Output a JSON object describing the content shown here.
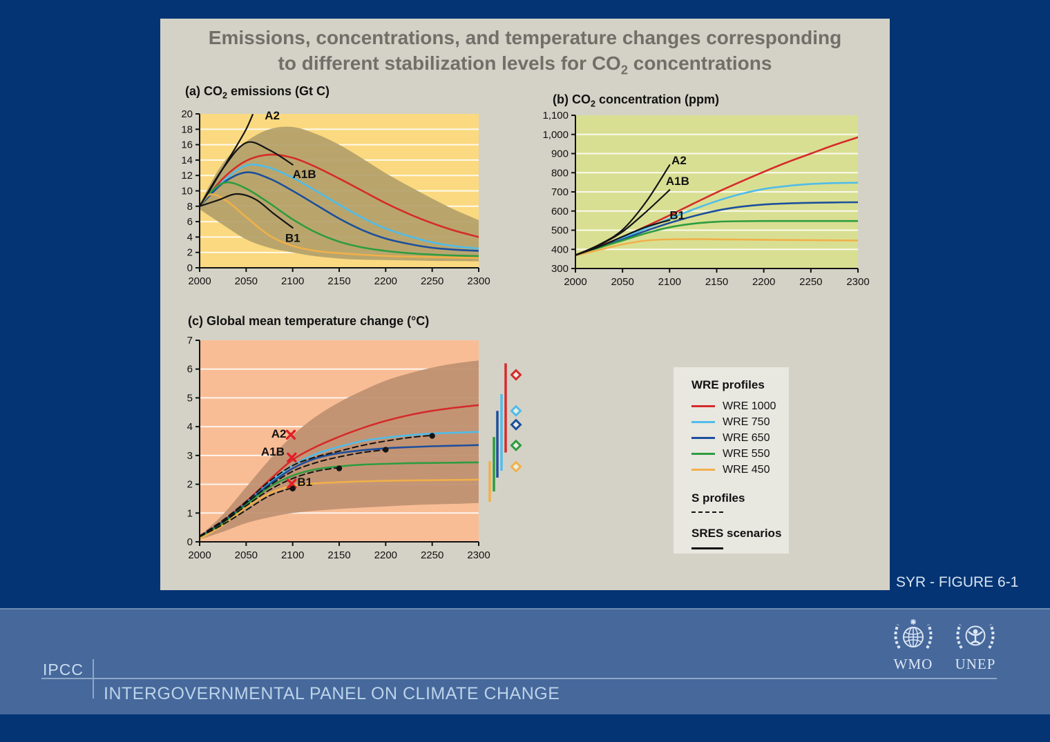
{
  "slide": {
    "title_line1": "Emissions, concentrations, and temperature changes corresponding",
    "title_line2_prefix": "to different stabilization levels for CO",
    "title_line2_sub": "2",
    "title_line2_suffix": " concentrations",
    "figure_label": "SYR - FIGURE 6-1"
  },
  "legend": {
    "title": "WRE profiles",
    "entries": [
      {
        "label": "WRE 1000",
        "color": "#D52B2B"
      },
      {
        "label": "WRE 750",
        "color": "#4FBCEA"
      },
      {
        "label": "WRE 650",
        "color": "#1C4F9C"
      },
      {
        "label": "WRE 550",
        "color": "#2E9C3F"
      },
      {
        "label": "WRE 450",
        "color": "#F0B04A"
      }
    ],
    "s_profiles_label": "S profiles",
    "sres_label": "SRES scenarios"
  },
  "footer": {
    "acronym": "IPCC",
    "full_name": "INTERGOVERNMENTAL PANEL ON CLIMATE CHANGE",
    "logo_left": "WMO",
    "logo_right": "UNEP"
  },
  "chart_data": [
    {
      "id": "a",
      "type": "line",
      "title_prefix": "(a) CO",
      "title_sub": "2",
      "title_suffix": " emissions (Gt C)",
      "xlim": [
        2000,
        2300
      ],
      "ylim": [
        0,
        20
      ],
      "xticks": [
        2000,
        2050,
        2100,
        2150,
        2200,
        2250,
        2300
      ],
      "yticks": [
        0,
        2,
        4,
        6,
        8,
        10,
        12,
        14,
        16,
        18,
        20
      ],
      "bg": "#FBD980",
      "band_color": "#B4A06A",
      "grid_color": "#FFFFFF",
      "x_default": [
        2000,
        2025,
        2050,
        2075,
        2100,
        2125,
        2150,
        2175,
        2200,
        2225,
        2250,
        2275,
        2300
      ],
      "band": {
        "upper": [
          8.3,
          13.6,
          16.4,
          18.0,
          18.3,
          17.4,
          16.0,
          14.2,
          12.3,
          10.6,
          9.0,
          7.5,
          6.2
        ],
        "lower": [
          7.6,
          5.6,
          3.7,
          2.6,
          2.0,
          1.5,
          1.2,
          1.05,
          1.0,
          0.95,
          0.9,
          0.88,
          0.85
        ]
      },
      "series": [
        {
          "name": "WRE 1000",
          "color": "#D52B2B",
          "y": [
            8,
            11.6,
            13.9,
            14.7,
            14.3,
            13.1,
            11.6,
            10.0,
            8.4,
            7.0,
            5.8,
            4.8,
            4.0
          ]
        },
        {
          "name": "WRE 750",
          "color": "#4FBCEA",
          "y": [
            8,
            11.2,
            13.3,
            13.0,
            11.7,
            10.0,
            8.2,
            6.5,
            5.1,
            4.1,
            3.3,
            2.8,
            2.5
          ]
        },
        {
          "name": "WRE 650",
          "color": "#1C4F9C",
          "y": [
            8,
            11.0,
            12.4,
            11.6,
            10.0,
            8.2,
            6.4,
            4.9,
            3.8,
            3.1,
            2.6,
            2.35,
            2.2
          ]
        },
        {
          "name": "WRE 550",
          "color": "#2E9C3F",
          "x": [
            2000,
            2015,
            2030,
            2050,
            2075,
            2100,
            2125,
            2150,
            2175,
            2200,
            2225,
            2250,
            2275,
            2300
          ],
          "y": [
            8,
            10.2,
            11.1,
            10.3,
            8.4,
            6.3,
            4.6,
            3.4,
            2.65,
            2.2,
            1.9,
            1.72,
            1.6,
            1.52
          ]
        },
        {
          "name": "WRE 450",
          "color": "#F0B04A",
          "x": [
            2000,
            2012,
            2030,
            2050,
            2075,
            2100,
            2125,
            2150,
            2175,
            2200,
            2225,
            2250,
            2275,
            2300
          ],
          "y": [
            8,
            9.55,
            8.6,
            6.6,
            4.2,
            2.85,
            2.2,
            1.9,
            1.7,
            1.55,
            1.45,
            1.4,
            1.33,
            1.27
          ]
        },
        {
          "name": "A2",
          "color": "#141414",
          "width": 2.2,
          "x": [
            2000,
            2010,
            2020,
            2030,
            2040,
            2050,
            2057
          ],
          "y": [
            8,
            9.9,
            11.9,
            13.9,
            15.9,
            18.0,
            19.9
          ]
        },
        {
          "name": "A1B",
          "color": "#141414",
          "width": 2.2,
          "x": [
            2000,
            2025,
            2050,
            2075,
            2100
          ],
          "y": [
            8,
            12.9,
            16.25,
            15.3,
            13.4
          ]
        },
        {
          "name": "B1",
          "color": "#141414",
          "width": 2.2,
          "x": [
            2000,
            2020,
            2040,
            2060,
            2080,
            2100
          ],
          "y": [
            8,
            8.8,
            9.6,
            8.9,
            7.0,
            5.2
          ]
        }
      ],
      "labels": [
        {
          "text": "A2",
          "x": 2070,
          "y": 19.8
        },
        {
          "text": "A1B",
          "x": 2100,
          "y": 12.2
        },
        {
          "text": "B1",
          "x": 2092,
          "y": 3.9
        }
      ],
      "markers": []
    },
    {
      "id": "b",
      "type": "line",
      "title_prefix": "(b) CO",
      "title_sub": "2",
      "title_suffix": " concentration (ppm)",
      "xlim": [
        2000,
        2300
      ],
      "ylim": [
        300,
        1100
      ],
      "xticks": [
        2000,
        2050,
        2100,
        2150,
        2200,
        2250,
        2300
      ],
      "yticks": [
        300,
        400,
        500,
        600,
        700,
        800,
        900,
        1000,
        1100
      ],
      "ytick_labels": [
        "300",
        "400",
        "500",
        "600",
        "700",
        "800",
        "900",
        "1,000",
        "1,100"
      ],
      "bg": "#D9DF92",
      "grid_color": "#FFFFFF",
      "x_default": [
        2000,
        2025,
        2050,
        2075,
        2100,
        2125,
        2150,
        2175,
        2200,
        2225,
        2250,
        2275,
        2300
      ],
      "series": [
        {
          "name": "WRE 1000",
          "color": "#D52B2B",
          "y": [
            370,
            415,
            465,
            520,
            578,
            638,
            697,
            752,
            805,
            855,
            900,
            945,
            985
          ]
        },
        {
          "name": "WRE 750",
          "color": "#4FBCEA",
          "y": [
            370,
            412,
            458,
            510,
            560,
            608,
            652,
            688,
            715,
            731,
            741,
            746,
            748
          ]
        },
        {
          "name": "WRE 650",
          "color": "#1C4F9C",
          "y": [
            370,
            410,
            452,
            497,
            538,
            573,
            602,
            622,
            634,
            640,
            643,
            645,
            646
          ]
        },
        {
          "name": "WRE 550",
          "color": "#2E9C3F",
          "y": [
            368,
            408,
            446,
            484,
            515,
            534,
            544,
            547,
            548,
            548,
            548,
            548,
            548
          ]
        },
        {
          "name": "WRE 450",
          "color": "#F0B04A",
          "y": [
            368,
            397,
            426,
            446,
            452,
            453,
            452,
            451,
            450,
            449,
            448,
            447,
            446
          ]
        },
        {
          "name": "A2",
          "color": "#141414",
          "width": 2.2,
          "x": [
            2000,
            2025,
            2050,
            2075,
            2100
          ],
          "y": [
            370,
            424,
            502,
            648,
            840
          ]
        },
        {
          "name": "A1B",
          "color": "#141414",
          "width": 2.2,
          "x": [
            2000,
            2025,
            2050,
            2075,
            2100
          ],
          "y": [
            370,
            421,
            492,
            596,
            710
          ]
        },
        {
          "name": "B1",
          "color": "#141414",
          "width": 2.2,
          "x": [
            2000,
            2025,
            2050,
            2075,
            2100
          ],
          "y": [
            369,
            413,
            466,
            517,
            553
          ]
        }
      ],
      "labels": [
        {
          "text": "A2",
          "x": 2102,
          "y": 865
        },
        {
          "text": "A1B",
          "x": 2096,
          "y": 757
        },
        {
          "text": "B1",
          "x": 2100,
          "y": 580
        }
      ],
      "markers": []
    },
    {
      "id": "c",
      "type": "line",
      "title_prefix": "(c) Global mean temperature change (°C)",
      "title_sub": "",
      "title_suffix": "",
      "xlim": [
        2000,
        2300
      ],
      "ylim": [
        0,
        7
      ],
      "xticks": [
        2000,
        2050,
        2100,
        2150,
        2200,
        2250,
        2300
      ],
      "yticks": [
        0,
        1,
        2,
        3,
        4,
        5,
        6,
        7
      ],
      "bg": "#F9BD95",
      "band_color": "#BE9071",
      "grid_color": "#FFFFFF",
      "x_default": [
        2000,
        2025,
        2050,
        2075,
        2100,
        2125,
        2150,
        2175,
        2200,
        2225,
        2250,
        2275,
        2300
      ],
      "band": {
        "upper": [
          0.2,
          0.95,
          1.9,
          2.85,
          3.7,
          4.35,
          4.85,
          5.25,
          5.6,
          5.85,
          6.05,
          6.2,
          6.3
        ],
        "lower": [
          0.08,
          0.35,
          0.65,
          0.85,
          1.0,
          1.08,
          1.14,
          1.19,
          1.23,
          1.27,
          1.3,
          1.32,
          1.35
        ]
      },
      "series": [
        {
          "name": "WRE 1000",
          "color": "#D52B2B",
          "y": [
            0.15,
            0.72,
            1.4,
            2.15,
            2.85,
            3.3,
            3.65,
            3.95,
            4.2,
            4.4,
            4.55,
            4.66,
            4.75
          ]
        },
        {
          "name": "WRE 750",
          "color": "#4FBCEA",
          "y": [
            0.15,
            0.7,
            1.35,
            2.05,
            2.65,
            3.05,
            3.3,
            3.5,
            3.62,
            3.7,
            3.76,
            3.79,
            3.82
          ]
        },
        {
          "name": "WRE 650",
          "color": "#1C4F9C",
          "y": [
            0.15,
            0.7,
            1.33,
            2.0,
            2.55,
            2.9,
            3.08,
            3.18,
            3.25,
            3.29,
            3.32,
            3.34,
            3.36
          ]
        },
        {
          "name": "WRE 550",
          "color": "#2E9C3F",
          "y": [
            0.13,
            0.65,
            1.28,
            1.9,
            2.3,
            2.52,
            2.62,
            2.68,
            2.71,
            2.73,
            2.74,
            2.75,
            2.76
          ]
        },
        {
          "name": "WRE 450",
          "color": "#F0B04A",
          "y": [
            0.1,
            0.58,
            1.2,
            1.68,
            1.95,
            2.03,
            2.07,
            2.1,
            2.12,
            2.13,
            2.14,
            2.15,
            2.16
          ]
        },
        {
          "name": "S 750",
          "color": "#141414",
          "width": 2,
          "dash": "8 5",
          "x": [
            2000,
            2025,
            2050,
            2075,
            2100,
            2125,
            2150,
            2175,
            2200,
            2225,
            2250
          ],
          "y": [
            0.2,
            0.75,
            1.4,
            2.1,
            2.65,
            2.95,
            3.15,
            3.35,
            3.5,
            3.62,
            3.7
          ]
        },
        {
          "name": "S 650",
          "color": "#141414",
          "width": 2,
          "dash": "8 5",
          "x": [
            2000,
            2025,
            2050,
            2075,
            2100,
            2125,
            2150,
            2175,
            2200
          ],
          "y": [
            0.2,
            0.72,
            1.35,
            1.95,
            2.45,
            2.75,
            2.95,
            3.1,
            3.2
          ]
        },
        {
          "name": "S 550",
          "color": "#141414",
          "width": 2,
          "dash": "8 5",
          "x": [
            2000,
            2025,
            2050,
            2075,
            2100,
            2125,
            2150
          ],
          "y": [
            0.2,
            0.68,
            1.25,
            1.8,
            2.2,
            2.45,
            2.58
          ]
        },
        {
          "name": "S 450",
          "color": "#141414",
          "width": 2,
          "dash": "8 5",
          "x": [
            2000,
            2025,
            2050,
            2075,
            2100
          ],
          "y": [
            0.18,
            0.6,
            1.1,
            1.6,
            1.88
          ]
        }
      ],
      "labels": [
        {
          "text": "A2",
          "x": 2077,
          "y": 3.76
        },
        {
          "text": "A1B",
          "x": 2066,
          "y": 3.14
        },
        {
          "text": "B1",
          "x": 2105,
          "y": 2.09
        }
      ],
      "markers": [
        {
          "type": "x",
          "color": "#E21E26",
          "x": 2098,
          "y": 3.72
        },
        {
          "type": "x",
          "color": "#E21E26",
          "x": 2099,
          "y": 2.93
        },
        {
          "type": "x",
          "color": "#E21E26",
          "x": 2099,
          "y": 2.02
        },
        {
          "type": "dot",
          "color": "#141414",
          "x": 2100,
          "y": 1.85
        },
        {
          "type": "dot",
          "color": "#141414",
          "x": 2150,
          "y": 2.55
        },
        {
          "type": "dot",
          "color": "#141414",
          "x": 2200,
          "y": 3.2
        },
        {
          "type": "dot",
          "color": "#141414",
          "x": 2250,
          "y": 3.68
        }
      ],
      "sidebars": [
        {
          "color": "#D52B2B",
          "range": [
            3.1,
            6.2
          ],
          "diamond": 5.8
        },
        {
          "color": "#4FBCEA",
          "range": [
            2.47,
            5.13
          ],
          "diamond": 4.55
        },
        {
          "color": "#1C4F9C",
          "range": [
            2.23,
            4.55
          ],
          "diamond": 4.07
        },
        {
          "color": "#2E9C3F",
          "range": [
            1.75,
            3.64
          ],
          "diamond": 3.35
        },
        {
          "color": "#F0B04A",
          "range": [
            1.39,
            2.8
          ],
          "diamond": 2.61
        }
      ]
    }
  ]
}
